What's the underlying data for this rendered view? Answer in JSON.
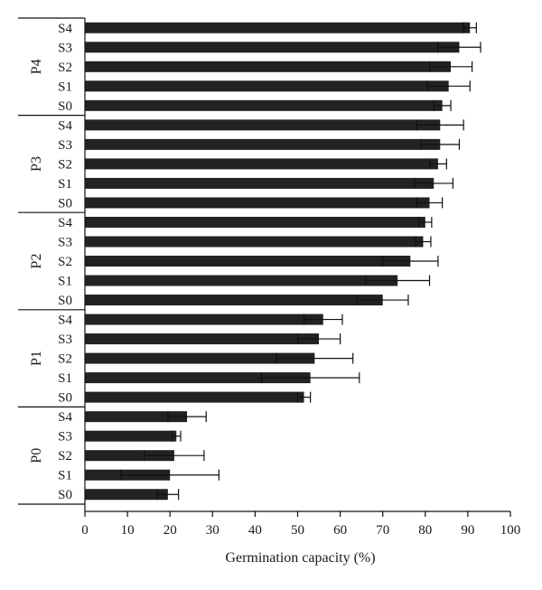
{
  "chart_data": {
    "type": "bar",
    "orientation": "horizontal",
    "title": "",
    "xlabel": "Germination capacity (%)",
    "ylabel": "",
    "xlim": [
      0,
      100
    ],
    "xticks": [
      "0",
      "10",
      "20",
      "30",
      "40",
      "50",
      "60",
      "70",
      "80",
      "90",
      "100"
    ],
    "grid": false,
    "bar_color": "#222222",
    "groups": [
      {
        "name": "P4",
        "rows": [
          {
            "label": "S4",
            "value": 90.5,
            "error": 1.5
          },
          {
            "label": "S3",
            "value": 88,
            "error": 5
          },
          {
            "label": "S2",
            "value": 86,
            "error": 5
          },
          {
            "label": "S1",
            "value": 85.5,
            "error": 5
          },
          {
            "label": "S0",
            "value": 84,
            "error": 2
          }
        ]
      },
      {
        "name": "P3",
        "rows": [
          {
            "label": "S4",
            "value": 83.5,
            "error": 5.5
          },
          {
            "label": "S3",
            "value": 83.5,
            "error": 4.5
          },
          {
            "label": "S2",
            "value": 83,
            "error": 2
          },
          {
            "label": "S1",
            "value": 82,
            "error": 4.5
          },
          {
            "label": "S0",
            "value": 81,
            "error": 3
          }
        ]
      },
      {
        "name": "P2",
        "rows": [
          {
            "label": "S4",
            "value": 80,
            "error": 1.5
          },
          {
            "label": "S3",
            "value": 79.5,
            "error": 1.8
          },
          {
            "label": "S2",
            "value": 76.5,
            "error": 6.5
          },
          {
            "label": "S1",
            "value": 73.5,
            "error": 7.5
          },
          {
            "label": "S0",
            "value": 70,
            "error": 6
          }
        ]
      },
      {
        "name": "P1",
        "rows": [
          {
            "label": "S4",
            "value": 56,
            "error": 4.5
          },
          {
            "label": "S3",
            "value": 55,
            "error": 5
          },
          {
            "label": "S2",
            "value": 54,
            "error": 9
          },
          {
            "label": "S1",
            "value": 53,
            "error": 11.5
          },
          {
            "label": "S0",
            "value": 51.5,
            "error": 1.5
          }
        ]
      },
      {
        "name": "P0",
        "rows": [
          {
            "label": "S4",
            "value": 24,
            "error": 4.5
          },
          {
            "label": "S3",
            "value": 21.5,
            "error": 1
          },
          {
            "label": "S2",
            "value": 21,
            "error": 7
          },
          {
            "label": "S1",
            "value": 20,
            "error": 11.5
          },
          {
            "label": "S0",
            "value": 19.5,
            "error": 2.5
          }
        ]
      }
    ]
  }
}
